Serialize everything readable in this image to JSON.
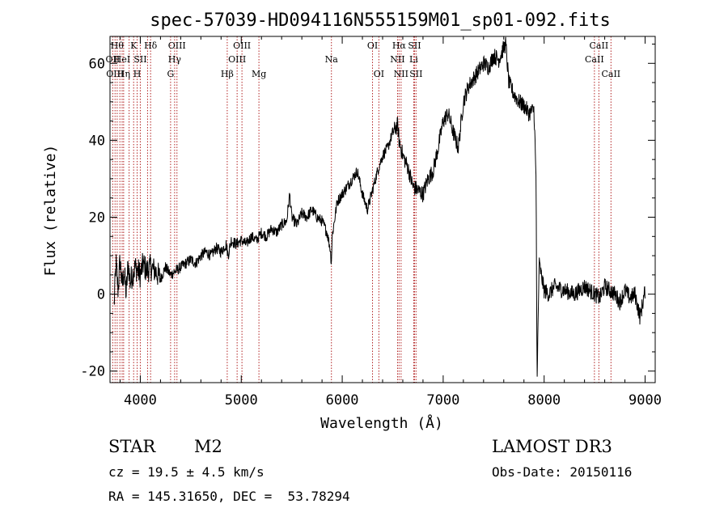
{
  "chart_data": {
    "type": "line",
    "title": "spec-57039-HD094116N555159M01_sp01-092.fits",
    "xlabel": "Wavelength (Å)",
    "ylabel": "Flux (relative)",
    "xlim": [
      3700,
      9100
    ],
    "ylim": [
      -23,
      67
    ],
    "xticks": [
      4000,
      5000,
      6000,
      7000,
      8000,
      9000
    ],
    "yticks": [
      -20,
      0,
      20,
      40,
      60
    ],
    "line_color": "#000000",
    "marker_color": "#b22222",
    "series": [
      {
        "x": [
          3740,
          3760,
          3780,
          3800,
          3820,
          3840,
          3860,
          3880,
          3900,
          3920,
          3950,
          3980,
          4000,
          4030,
          4060,
          4100,
          4150,
          4200,
          4250,
          4300,
          4350,
          4400,
          4450,
          4500,
          4550,
          4600,
          4650,
          4700,
          4750,
          4800,
          4850,
          4870,
          4900,
          4950,
          5000,
          5050,
          5100,
          5150,
          5200,
          5250,
          5300,
          5350,
          5400,
          5450,
          5480,
          5500,
          5550,
          5600,
          5650,
          5700,
          5750,
          5800,
          5850,
          5880,
          5893,
          5900,
          5950,
          6000,
          6050,
          6100,
          6150,
          6200,
          6250,
          6300,
          6350,
          6400,
          6450,
          6500,
          6550,
          6563,
          6600,
          6650,
          6700,
          6750,
          6800,
          6850,
          6900,
          6950,
          7000,
          7050,
          7100,
          7150,
          7200,
          7250,
          7300,
          7350,
          7400,
          7450,
          7500,
          7550,
          7600,
          7620,
          7650,
          7700,
          7750,
          7800,
          7850,
          7900,
          7920,
          7930,
          7950,
          8000,
          8050,
          8100,
          8200,
          8300,
          8400,
          8450,
          8500,
          8550,
          8600,
          8650,
          8700,
          8750,
          8800,
          8850,
          8900,
          8950,
          9000
        ],
        "y": [
          -3,
          8,
          1,
          9,
          2,
          6,
          0,
          8,
          3,
          5,
          7,
          6,
          5,
          8,
          6,
          7,
          6,
          4,
          7,
          5,
          6,
          7,
          8,
          9,
          8,
          10,
          11,
          10,
          12,
          11,
          13,
          10,
          14,
          13,
          14,
          13,
          15,
          14,
          16,
          15,
          17,
          16,
          18,
          19,
          26,
          20,
          18,
          21,
          20,
          22,
          20,
          19,
          16,
          12,
          8,
          15,
          24,
          26,
          28,
          30,
          32,
          26,
          22,
          27,
          32,
          36,
          38,
          42,
          44,
          40,
          36,
          33,
          28,
          27,
          26,
          30,
          32,
          38,
          45,
          47,
          42,
          38,
          50,
          54,
          56,
          58,
          60,
          59,
          62,
          61,
          64,
          65,
          55,
          52,
          50,
          49,
          47,
          48,
          30,
          -23,
          8,
          1,
          0,
          2,
          1,
          0,
          2,
          1,
          0,
          -1,
          2,
          1,
          0,
          -2,
          1,
          -1,
          0,
          -6,
          1
        ]
      }
    ],
    "spectral_lines": [
      {
        "wl": 3727,
        "label": "OII",
        "row": 1
      },
      {
        "wl": 3750,
        "label": "OIII",
        "row": 2
      },
      {
        "wl": 3771,
        "label": "Hθ",
        "row": 0
      },
      {
        "wl": 3798,
        "label": "",
        "row": 0
      },
      {
        "wl": 3820,
        "label": "HeI",
        "row": 1
      },
      {
        "wl": 3835,
        "label": "Hη",
        "row": 2
      },
      {
        "wl": 3889,
        "label": "",
        "row": 0
      },
      {
        "wl": 3934,
        "label": "K",
        "row": 0
      },
      {
        "wl": 3969,
        "label": "H",
        "row": 2
      },
      {
        "wl": 4000,
        "label": "SII",
        "row": 1
      },
      {
        "wl": 4072,
        "label": "",
        "row": 0
      },
      {
        "wl": 4102,
        "label": "Hδ",
        "row": 0
      },
      {
        "wl": 4300,
        "label": "G",
        "row": 2
      },
      {
        "wl": 4340,
        "label": "Hγ",
        "row": 1
      },
      {
        "wl": 4363,
        "label": "OIII",
        "row": 0
      },
      {
        "wl": 4861,
        "label": "Hβ",
        "row": 2
      },
      {
        "wl": 4959,
        "label": "OIII",
        "row": 1
      },
      {
        "wl": 5007,
        "label": "OIII",
        "row": 0
      },
      {
        "wl": 5175,
        "label": "Mg",
        "row": 2
      },
      {
        "wl": 5893,
        "label": "Na",
        "row": 1
      },
      {
        "wl": 6300,
        "label": "OI",
        "row": 0
      },
      {
        "wl": 6363,
        "label": "OI",
        "row": 2
      },
      {
        "wl": 6548,
        "label": "NII",
        "row": 1
      },
      {
        "wl": 6563,
        "label": "Hα",
        "row": 0
      },
      {
        "wl": 6583,
        "label": "NII",
        "row": 2
      },
      {
        "wl": 6708,
        "label": "Li",
        "row": 1
      },
      {
        "wl": 6716,
        "label": "SII",
        "row": 0
      },
      {
        "wl": 6731,
        "label": "SII",
        "row": 2
      },
      {
        "wl": 8498,
        "label": "CaII",
        "row": 1
      },
      {
        "wl": 8542,
        "label": "CaII",
        "row": 0
      },
      {
        "wl": 8662,
        "label": "CaII",
        "row": 2
      }
    ]
  },
  "info": {
    "object_class": "STAR",
    "subclass": "M2",
    "survey": "LAMOST DR3",
    "cz": "cz = 19.5 ± 4.5 km/s",
    "obs_date": "Obs-Date: 20150116",
    "coords": "RA = 145.31650, DEC =  53.78294"
  }
}
